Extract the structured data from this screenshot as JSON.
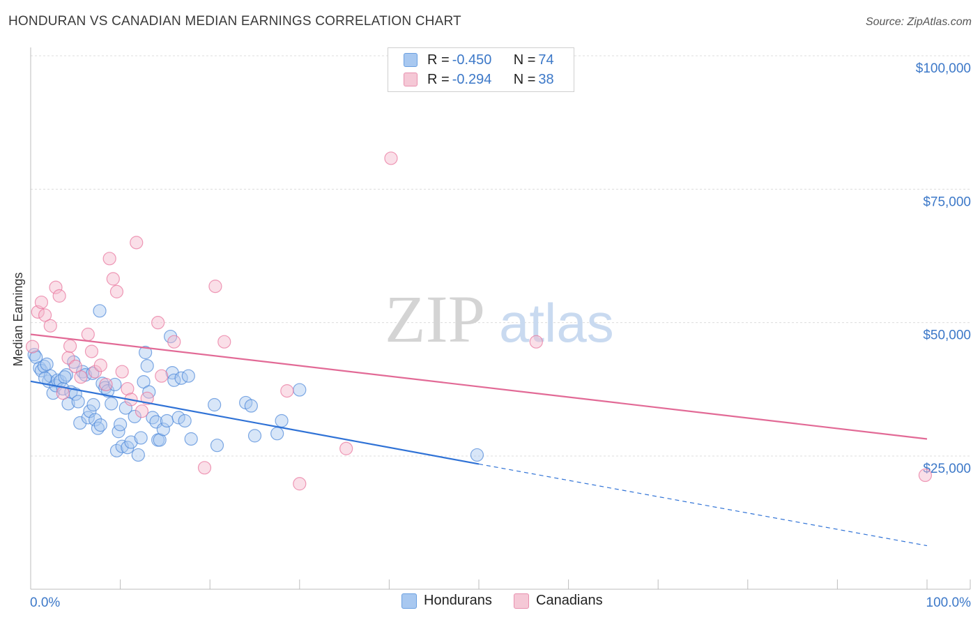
{
  "title": "HONDURAN VS CANADIAN MEDIAN EARNINGS CORRELATION CHART",
  "source": "Source: ZipAtlas.com",
  "watermark": {
    "zip": "ZIP",
    "atlas": "atlas"
  },
  "legend": {
    "rows": [
      {
        "r_label": "R = ",
        "r_value": "-0.450",
        "n_label": "N = ",
        "n_value": "74",
        "color": "#a8c8f0"
      },
      {
        "r_label": "R = ",
        "r_value": "-0.294",
        "n_label": "N = ",
        "n_value": "38",
        "color": "#f5b8cc"
      }
    ]
  },
  "bottom_legend": [
    {
      "label": "Hondurans",
      "color": "#a8c8f0"
    },
    {
      "label": "Canadians",
      "color": "#f5b8cc"
    }
  ],
  "chart_data": {
    "type": "scatter",
    "title": "HONDURAN VS CANADIAN MEDIAN EARNINGS CORRELATION CHART",
    "xlabel": "",
    "ylabel": "Median Earnings",
    "xlim": [
      0,
      100
    ],
    "ylim": [
      0,
      105000
    ],
    "x_tick_labels": [
      "0.0%",
      "100.0%"
    ],
    "y_ticks": [
      25000,
      50000,
      75000,
      100000
    ],
    "y_tick_labels": [
      "$25,000",
      "$50,000",
      "$75,000",
      "$100,000"
    ],
    "grid": true,
    "series": [
      {
        "name": "Hondurans",
        "color": "#4a86d8",
        "fill": "#a8c8f0",
        "trend": {
          "x0": 0,
          "y0": 39000,
          "x1": 50,
          "y1": 23500,
          "dash_to_x": 100,
          "dash_to_y": 8200
        },
        "points": [
          [
            0.4,
            44000
          ],
          [
            0.6,
            43500
          ],
          [
            1.0,
            41500
          ],
          [
            1.2,
            41000
          ],
          [
            1.5,
            41800
          ],
          [
            1.8,
            42200
          ],
          [
            2.0,
            39000
          ],
          [
            2.2,
            40000
          ],
          [
            2.5,
            36800
          ],
          [
            2.8,
            38200
          ],
          [
            3.0,
            39200
          ],
          [
            3.3,
            39000
          ],
          [
            3.6,
            37600
          ],
          [
            4.0,
            40200
          ],
          [
            4.2,
            34800
          ],
          [
            4.5,
            37000
          ],
          [
            4.8,
            42600
          ],
          [
            5.0,
            36600
          ],
          [
            5.3,
            35200
          ],
          [
            5.5,
            31200
          ],
          [
            5.8,
            40800
          ],
          [
            6.1,
            40200
          ],
          [
            6.4,
            32200
          ],
          [
            6.6,
            33400
          ],
          [
            7.0,
            34600
          ],
          [
            7.2,
            31800
          ],
          [
            7.5,
            30200
          ],
          [
            7.8,
            30800
          ],
          [
            8.0,
            38600
          ],
          [
            8.3,
            37800
          ],
          [
            8.6,
            37200
          ],
          [
            9.0,
            34800
          ],
          [
            9.4,
            38400
          ],
          [
            9.6,
            26000
          ],
          [
            9.8,
            29600
          ],
          [
            10.2,
            26800
          ],
          [
            10.6,
            34000
          ],
          [
            10.8,
            26600
          ],
          [
            11.2,
            27600
          ],
          [
            11.6,
            32400
          ],
          [
            12.0,
            25200
          ],
          [
            12.3,
            28400
          ],
          [
            12.6,
            38900
          ],
          [
            12.8,
            44400
          ],
          [
            13.0,
            41900
          ],
          [
            13.2,
            37000
          ],
          [
            13.6,
            32200
          ],
          [
            14.0,
            31400
          ],
          [
            14.2,
            28000
          ],
          [
            14.4,
            28000
          ],
          [
            14.8,
            30000
          ],
          [
            15.2,
            31600
          ],
          [
            15.6,
            47400
          ],
          [
            15.8,
            40600
          ],
          [
            16.0,
            39200
          ],
          [
            16.5,
            32200
          ],
          [
            16.8,
            39600
          ],
          [
            17.2,
            31600
          ],
          [
            17.6,
            40000
          ],
          [
            17.9,
            28200
          ],
          [
            20.5,
            34600
          ],
          [
            20.8,
            27000
          ],
          [
            24.0,
            35000
          ],
          [
            24.6,
            34400
          ],
          [
            25.0,
            28800
          ],
          [
            27.5,
            29200
          ],
          [
            28.0,
            31600
          ],
          [
            30.0,
            37400
          ],
          [
            7.7,
            52200
          ],
          [
            49.8,
            25200
          ],
          [
            1.6,
            39600
          ],
          [
            3.8,
            39800
          ],
          [
            6.9,
            40500
          ],
          [
            10.0,
            30900
          ]
        ]
      },
      {
        "name": "Canadians",
        "color": "#e8709a",
        "fill": "#f5b8cc",
        "trend": {
          "x0": 0,
          "y0": 47800,
          "x1": 100,
          "y1": 28200
        },
        "points": [
          [
            0.2,
            45500
          ],
          [
            0.8,
            52000
          ],
          [
            1.2,
            53800
          ],
          [
            1.6,
            51400
          ],
          [
            2.2,
            49400
          ],
          [
            2.8,
            56600
          ],
          [
            3.2,
            55000
          ],
          [
            3.6,
            36800
          ],
          [
            4.2,
            43400
          ],
          [
            4.4,
            45600
          ],
          [
            5.0,
            41800
          ],
          [
            5.6,
            39800
          ],
          [
            6.4,
            47800
          ],
          [
            6.8,
            44600
          ],
          [
            7.2,
            40800
          ],
          [
            7.8,
            42000
          ],
          [
            8.4,
            38400
          ],
          [
            8.8,
            62000
          ],
          [
            9.2,
            58200
          ],
          [
            9.6,
            55800
          ],
          [
            10.2,
            40800
          ],
          [
            10.8,
            37600
          ],
          [
            11.2,
            35600
          ],
          [
            11.8,
            65000
          ],
          [
            12.4,
            33400
          ],
          [
            13.0,
            35800
          ],
          [
            14.2,
            50000
          ],
          [
            14.6,
            40000
          ],
          [
            16.0,
            46400
          ],
          [
            19.4,
            22800
          ],
          [
            20.6,
            56800
          ],
          [
            21.6,
            46400
          ],
          [
            28.6,
            37200
          ],
          [
            30.0,
            19800
          ],
          [
            35.2,
            26400
          ],
          [
            40.2,
            80800
          ],
          [
            56.4,
            46400
          ],
          [
            99.8,
            21400
          ]
        ]
      }
    ]
  }
}
